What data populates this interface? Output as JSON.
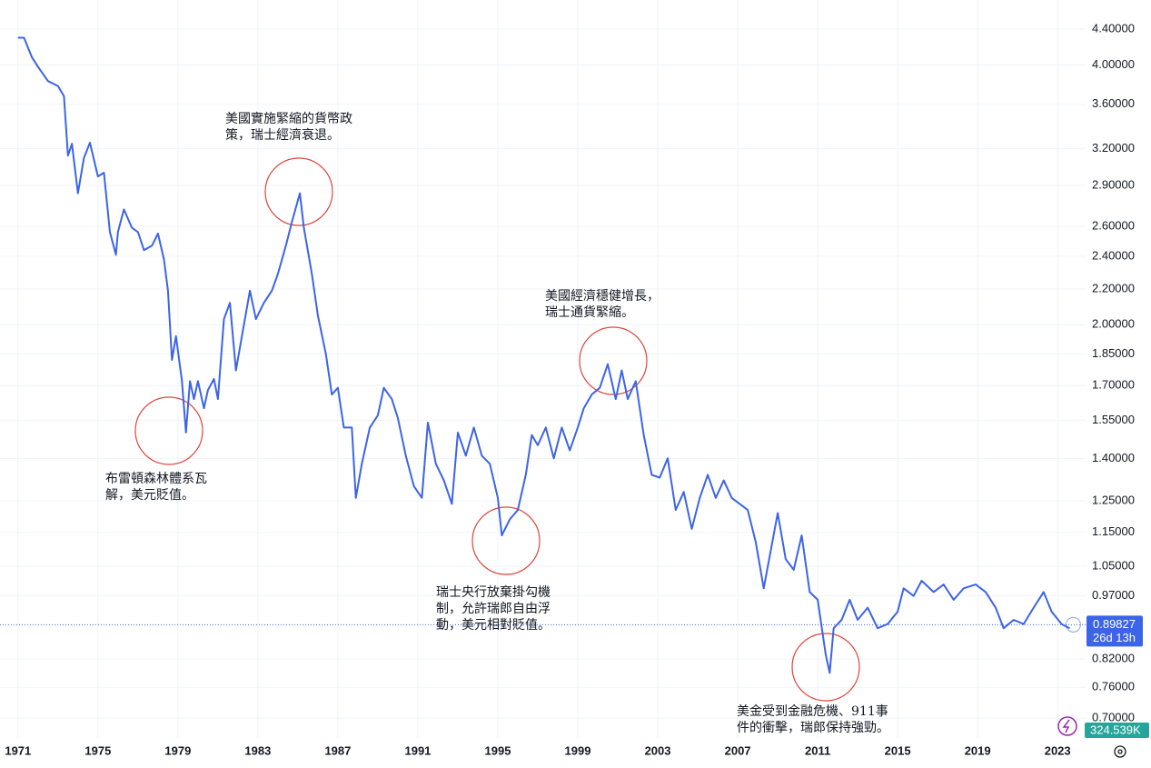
{
  "chart_data": {
    "type": "line",
    "log_scale": true,
    "grid": true,
    "color": "#3c64e8",
    "x": [
      1971.0,
      1971.3,
      1971.7,
      1972.0,
      1972.5,
      1973.0,
      1973.3,
      1973.5,
      1973.7,
      1974.0,
      1974.3,
      1974.6,
      1975.0,
      1975.3,
      1975.6,
      1975.9,
      1976.0,
      1976.3,
      1976.7,
      1977.0,
      1977.3,
      1977.7,
      1978.0,
      1978.3,
      1978.5,
      1978.7,
      1978.9,
      1979.2,
      1979.4,
      1979.6,
      1979.8,
      1980.0,
      1980.3,
      1980.5,
      1980.8,
      1981.0,
      1981.3,
      1981.6,
      1981.9,
      1982.2,
      1982.6,
      1982.9,
      1983.3,
      1983.7,
      1984.0,
      1984.4,
      1984.7,
      1985.1,
      1985.3,
      1985.7,
      1986.0,
      1986.4,
      1986.7,
      1987.0,
      1987.3,
      1987.7,
      1987.9,
      1988.2,
      1988.6,
      1989.0,
      1989.3,
      1989.7,
      1990.0,
      1990.4,
      1990.8,
      1991.2,
      1991.5,
      1991.9,
      1992.3,
      1992.7,
      1993.0,
      1993.4,
      1993.8,
      1994.2,
      1994.6,
      1995.0,
      1995.2,
      1995.6,
      1996.0,
      1996.4,
      1996.7,
      1997.0,
      1997.4,
      1997.8,
      1998.2,
      1998.6,
      1999.0,
      1999.3,
      1999.7,
      2000.1,
      2000.5,
      2000.9,
      2001.2,
      2001.5,
      2001.9,
      2002.3,
      2002.7,
      2003.1,
      2003.5,
      2003.9,
      2004.3,
      2004.7,
      2005.1,
      2005.5,
      2005.9,
      2006.3,
      2006.7,
      2007.1,
      2007.5,
      2007.9,
      2008.3,
      2008.7,
      2009.0,
      2009.4,
      2009.8,
      2010.2,
      2010.6,
      2011.0,
      2011.4,
      2011.6,
      2011.8,
      2012.2,
      2012.6,
      2013.0,
      2013.5,
      2014.0,
      2014.5,
      2015.0,
      2015.3,
      2015.8,
      2016.2,
      2016.8,
      2017.3,
      2017.8,
      2018.3,
      2018.9,
      2019.4,
      2019.9,
      2020.3,
      2020.8,
      2021.3,
      2021.8,
      2022.3,
      2022.7,
      2023.2,
      2023.6
    ],
    "values": [
      4.3,
      4.3,
      4.08,
      3.98,
      3.83,
      3.78,
      3.68,
      3.14,
      3.24,
      2.84,
      3.12,
      3.25,
      2.97,
      3.0,
      2.56,
      2.41,
      2.56,
      2.72,
      2.59,
      2.56,
      2.44,
      2.47,
      2.55,
      2.38,
      2.19,
      1.82,
      1.94,
      1.72,
      1.5,
      1.72,
      1.64,
      1.72,
      1.6,
      1.68,
      1.73,
      1.64,
      2.03,
      2.12,
      1.77,
      1.94,
      2.19,
      2.03,
      2.12,
      2.19,
      2.29,
      2.47,
      2.63,
      2.84,
      2.59,
      2.29,
      2.05,
      1.85,
      1.66,
      1.69,
      1.52,
      1.52,
      1.26,
      1.38,
      1.52,
      1.57,
      1.69,
      1.64,
      1.56,
      1.41,
      1.3,
      1.26,
      1.54,
      1.38,
      1.32,
      1.24,
      1.5,
      1.41,
      1.52,
      1.41,
      1.38,
      1.26,
      1.14,
      1.19,
      1.22,
      1.34,
      1.49,
      1.45,
      1.52,
      1.4,
      1.52,
      1.43,
      1.52,
      1.6,
      1.66,
      1.69,
      1.8,
      1.64,
      1.77,
      1.64,
      1.72,
      1.49,
      1.34,
      1.33,
      1.4,
      1.22,
      1.28,
      1.16,
      1.26,
      1.34,
      1.26,
      1.32,
      1.26,
      1.24,
      1.22,
      1.12,
      0.99,
      1.11,
      1.21,
      1.07,
      1.04,
      1.14,
      0.98,
      0.96,
      0.83,
      0.79,
      0.89,
      0.91,
      0.96,
      0.91,
      0.94,
      0.89,
      0.9,
      0.93,
      0.99,
      0.97,
      1.01,
      0.98,
      1.0,
      0.96,
      0.99,
      1.0,
      0.98,
      0.94,
      0.89,
      0.91,
      0.9,
      0.94,
      0.98,
      0.93,
      0.9,
      0.89
    ],
    "xlim": [
      1970.1,
      2024.4
    ],
    "xticks": [
      1971,
      1975,
      1979,
      1983,
      1987,
      1991,
      1995,
      1999,
      2003,
      2007,
      2011,
      2015,
      2019,
      2023
    ],
    "ylim": [
      0.664,
      4.755
    ],
    "yticks": [
      {
        "value": 4.4,
        "label": "4.40000"
      },
      {
        "value": 4.0,
        "label": "4.00000"
      },
      {
        "value": 3.6,
        "label": "3.60000"
      },
      {
        "value": 3.2,
        "label": "3.20000"
      },
      {
        "value": 2.9,
        "label": "2.90000"
      },
      {
        "value": 2.6,
        "label": "2.60000"
      },
      {
        "value": 2.4,
        "label": "2.40000"
      },
      {
        "value": 2.2,
        "label": "2.20000"
      },
      {
        "value": 2.0,
        "label": "2.00000"
      },
      {
        "value": 1.85,
        "label": "1.85000"
      },
      {
        "value": 1.7,
        "label": "1.70000"
      },
      {
        "value": 1.55,
        "label": "1.55000"
      },
      {
        "value": 1.4,
        "label": "1.40000"
      },
      {
        "value": 1.25,
        "label": "1.25000"
      },
      {
        "value": 1.15,
        "label": "1.15000"
      },
      {
        "value": 1.05,
        "label": "1.05000"
      },
      {
        "value": 0.97,
        "label": "0.97000"
      },
      {
        "value": 0.82,
        "label": "0.82000"
      },
      {
        "value": 0.76,
        "label": "0.76000"
      },
      {
        "value": 0.7,
        "label": "0.70000"
      }
    ],
    "last_price": 0.89827,
    "countdown": "26d 13h",
    "volume_label": "324.539K",
    "annotations": [
      {
        "lines": [
          "美國實施緊縮的貨幣政",
          "策，瑞士經濟衰退。"
        ]
      },
      {
        "lines": [
          "布雷頓森林體系瓦",
          "解，美元貶值。"
        ]
      },
      {
        "lines": [
          "美國經濟穩健增長，",
          "瑞士通貨緊縮。"
        ]
      },
      {
        "lines": [
          "瑞士央行放棄掛勾機",
          "制，允許瑞郎自由浮",
          "動，美元相對貶值。"
        ]
      },
      {
        "lines": [
          "美金受到金融危機、911事",
          "件的衝擊，瑞郎保持強勁。"
        ]
      }
    ]
  }
}
